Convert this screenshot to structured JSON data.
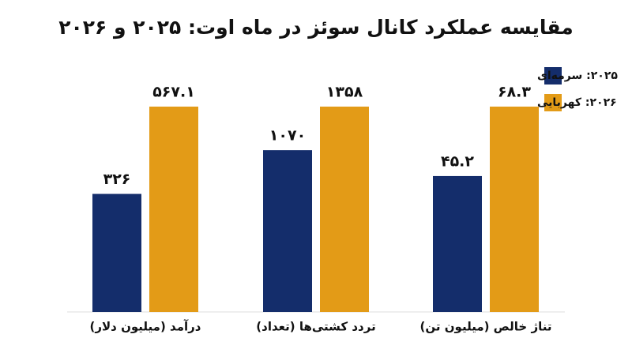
{
  "chart_data": {
    "type": "bar",
    "title": "مقایسه عملکرد کانال سوئز در ماه اوت: ۲۰۲۵ و ۲۰۲۶",
    "categories": [
      "درآمد (میلیون دلار)",
      "تردد کشتی‌ها (تعداد)",
      "تناژ خالص (میلیون تن)"
    ],
    "series": [
      {
        "name": "۲۰۲۵: سرمه‌ای",
        "color": "#142d6b",
        "values": [
          326,
          1070,
          45.2
        ],
        "value_labels": [
          "۳۲۶",
          "۱۰۷۰",
          "۴۵.۲"
        ]
      },
      {
        "name": "۲۰۲۶: کهربایی",
        "color": "#e39b17",
        "values": [
          567.1,
          1358,
          68.3
        ],
        "value_labels": [
          "۵۶۷.۱",
          "۱۳۵۸",
          "۶۸.۳"
        ]
      }
    ]
  }
}
